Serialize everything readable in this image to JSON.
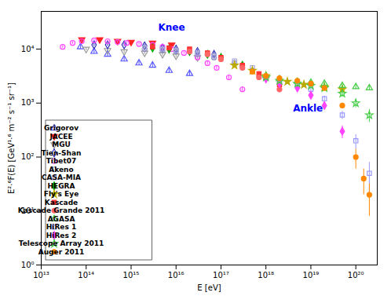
{
  "chart_data": {
    "type": "scatter",
    "xlabel": "E [eV]",
    "ylabel": "E²·⁶F(E) [GeV¹·⁶ m⁻² s⁻¹ sr⁻¹]",
    "log": true,
    "grid": false,
    "legend": "lower left",
    "xlim": [
      10000000000000.0,
      3e+20
    ],
    "ylim": [
      1,
      50000
    ],
    "xticks": [
      {
        "value": 10000000000000.0,
        "label": "10¹³"
      },
      {
        "value": 100000000000000.0,
        "label": "10¹⁴"
      },
      {
        "value": 1000000000000000.0,
        "label": "10¹⁵"
      },
      {
        "value": 1e+16,
        "label": "10¹⁶"
      },
      {
        "value": 1e+17,
        "label": "10¹⁷"
      },
      {
        "value": 1e+18,
        "label": "10¹⁸"
      },
      {
        "value": 1e+19,
        "label": "10¹⁹"
      },
      {
        "value": 1e+20,
        "label": "10²⁰"
      }
    ],
    "yticks": [
      {
        "value": 1,
        "label": "10⁰"
      },
      {
        "value": 10,
        "label": "10¹"
      },
      {
        "value": 100,
        "label": "10²"
      },
      {
        "value": 1000,
        "label": "10³"
      },
      {
        "value": 10000,
        "label": "10⁴"
      }
    ],
    "annotations": [
      {
        "text": "Knee",
        "x": 4000000000000000.0,
        "y": 22000,
        "color": "blue"
      },
      {
        "text": "Ankle",
        "x": 4e+18,
        "y": 700,
        "color": "blue"
      }
    ],
    "series": [
      {
        "name": "Grigorov",
        "color": "#5555ff",
        "marker": "triangle-up-open",
        "x": [
          75000000000000.0,
          150000000000000.0,
          300000000000000.0,
          700000000000000.0,
          1500000000000000.0,
          3000000000000000.0,
          7000000000000000.0,
          2e+16
        ],
        "values": [
          11000,
          9000,
          8000,
          6500,
          5500,
          5000,
          4000,
          3500
        ],
        "yerr": [
          1000,
          900,
          800,
          650,
          550,
          500,
          400,
          350
        ]
      },
      {
        "name": "JACEE",
        "color": "#ff2222",
        "marker": "triangle-down",
        "x": [
          80000000000000.0,
          200000000000000.0,
          500000000000000.0,
          1000000000000000.0,
          3000000000000000.0,
          8000000000000000.0
        ],
        "values": [
          15000,
          15000,
          14000,
          13500,
          13000,
          12000
        ],
        "yerr": [
          1000,
          1000,
          900,
          900,
          800,
          700
        ]
      },
      {
        "name": "MGU",
        "color": "#999999",
        "marker": "triangle-down-open",
        "x": [
          100000000000000.0,
          300000000000000.0,
          700000000000000.0,
          2000000000000000.0,
          5000000000000000.0,
          1e+16,
          3e+16
        ],
        "values": [
          10000,
          9500,
          9000,
          8500,
          8000,
          7500,
          7000
        ],
        "yerr": [
          600,
          580,
          560,
          540,
          520,
          500,
          480
        ]
      },
      {
        "name": "Tien-Shan",
        "color": "#3333bb",
        "marker": "diamond-open",
        "x": [
          150000000000000.0,
          300000000000000.0,
          700000000000000.0,
          2000000000000000.0,
          5000000000000000.0,
          1e+16,
          3e+16,
          7e+16
        ],
        "values": [
          12000,
          12000,
          12000,
          11500,
          10500,
          10000,
          9000,
          8000
        ],
        "yerr": [
          700,
          700,
          700,
          690,
          680,
          670,
          650,
          620
        ]
      },
      {
        "name": "Tibet07",
        "color": "#ff44ff",
        "marker": "circle-open",
        "x": [
          30000000000000.0,
          50000000000000.0,
          80000000000000.0,
          150000000000000.0,
          300000000000000.0,
          500000000000000.0,
          800000000000000.0,
          1500000000000000.0,
          3000000000000000.0,
          5000000000000000.0,
          8000000000000000.0,
          1.5e+16,
          3e+16,
          5e+16,
          8e+16,
          1.5e+17,
          3e+17
        ],
        "values": [
          11000,
          13000,
          14000,
          14500,
          14000,
          13500,
          13000,
          12500,
          12000,
          11000,
          10000,
          8500,
          7000,
          5500,
          4500,
          3000,
          1800
        ],
        "yerr": [
          600,
          600,
          600,
          600,
          600,
          600,
          600,
          600,
          600,
          550,
          500,
          450,
          400,
          350,
          300,
          250,
          200
        ]
      },
      {
        "name": "Akeno",
        "color": "#8888bb",
        "marker": "circle-open",
        "x": [
          2000000000000000.0,
          5000000000000000.0,
          1e+16,
          3e+16,
          7e+16,
          2e+17,
          5e+17,
          1e+18
        ],
        "values": [
          10000,
          9500,
          9000,
          8000,
          7000,
          5500,
          4000,
          3000
        ],
        "yerr": [
          500,
          490,
          480,
          460,
          440,
          400,
          350,
          300
        ]
      },
      {
        "name": "CASA-MIA",
        "color": "#aaaadd",
        "marker": "square-open",
        "x": [
          2000000000000000.0,
          5000000000000000.0,
          1e+16,
          3e+16,
          7e+16,
          2e+17,
          5e+17,
          1e+18
        ],
        "values": [
          10500,
          10000,
          9500,
          8500,
          7500,
          6000,
          4500,
          3000
        ],
        "yerr": [
          500,
          490,
          470,
          450,
          430,
          400,
          360,
          300
        ]
      },
      {
        "name": "HEGRA",
        "color": "#00aa00",
        "marker": "diamond",
        "x": [
          3000000000000000.0,
          7000000000000000.0,
          2e+16,
          5e+16,
          1e+17,
          3e+17
        ],
        "values": [
          10500,
          10000,
          9000,
          8000,
          7000,
          5000
        ],
        "yerr": [
          480,
          460,
          440,
          420,
          400,
          350
        ]
      },
      {
        "name": "Fly's Eye",
        "color": "#bbaa00",
        "marker": "star",
        "x": [
          2e+17,
          5e+17,
          1e+18,
          3e+18,
          7e+18,
          2e+19,
          5e+19
        ],
        "values": [
          5000,
          4000,
          3200,
          2500,
          2200,
          2000,
          1800
        ],
        "yerr": [
          300,
          280,
          250,
          220,
          200,
          180,
          160
        ]
      },
      {
        "name": "Kascade",
        "color": "#ff3333",
        "marker": "square",
        "x": [
          3000000000000000.0,
          7000000000000000.0,
          2e+16,
          5e+16,
          1e+17,
          3e+17,
          7e+17,
          2e+18
        ],
        "values": [
          11000,
          10500,
          10000,
          8500,
          7000,
          5000,
          3500,
          2200
        ],
        "yerr": [
          500,
          490,
          470,
          450,
          420,
          380,
          330,
          270
        ]
      },
      {
        "name": "Kascade Grande 2011",
        "color": "#ff6666",
        "marker": "circle",
        "x": [
          2e+16,
          5e+16,
          1e+17,
          3e+17,
          7e+17,
          2e+18
        ],
        "values": [
          9000,
          8000,
          6500,
          4500,
          3000,
          1800
        ],
        "yerr": [
          450,
          430,
          400,
          360,
          300,
          250
        ]
      },
      {
        "name": "AGASA",
        "color": "#44cc44",
        "marker": "triangle-up-open",
        "x": [
          1e+18,
          2e+18,
          5e+18,
          1e+19,
          2e+19,
          5e+19,
          1e+20,
          2e+20
        ],
        "values": [
          3200,
          2800,
          2500,
          2400,
          2300,
          2100,
          2000,
          1900
        ],
        "yerr": [
          250,
          230,
          220,
          210,
          200,
          200,
          200,
          200
        ]
      },
      {
        "name": "HiRes 1",
        "color": "#9999ff",
        "marker": "square-open",
        "x": [
          1e+18,
          2e+18,
          5e+18,
          1e+19,
          2e+19,
          5e+19,
          1e+20,
          2e+20
        ],
        "values": [
          3000,
          2500,
          2200,
          1800,
          1200,
          600,
          200,
          50
        ],
        "yerr": [
          250,
          230,
          200,
          180,
          150,
          100,
          60,
          30
        ]
      },
      {
        "name": "HiRes 2",
        "color": "#ff44ff",
        "marker": "diamond",
        "x": [
          1e+18,
          2e+18,
          5e+18,
          1e+19,
          2e+19,
          5e+19
        ],
        "values": [
          2800,
          2300,
          1900,
          1400,
          900,
          300
        ],
        "yerr": [
          240,
          220,
          190,
          170,
          140,
          80
        ]
      },
      {
        "name": "Telescope Array 2011",
        "color": "#44cc44",
        "marker": "star-open",
        "x": [
          1e+18,
          2e+18,
          5e+18,
          1e+19,
          2e+19,
          5e+19,
          1e+20,
          2e+20
        ],
        "values": [
          3000,
          2600,
          2300,
          2100,
          1900,
          1500,
          1000,
          600
        ],
        "yerr": [
          300,
          280,
          260,
          240,
          220,
          200,
          180,
          160
        ]
      },
      {
        "name": "Auger 2011",
        "color": "#ff8800",
        "marker": "circle",
        "x": [
          5e+17,
          1e+18,
          2e+18,
          5e+18,
          1e+19,
          2e+19,
          5e+19,
          1e+20,
          1.5e+20,
          2e+20
        ],
        "values": [
          3800,
          3200,
          2900,
          2600,
          2300,
          1900,
          900,
          100,
          40,
          20
        ],
        "yerr": [
          200,
          180,
          160,
          150,
          140,
          130,
          100,
          40,
          20,
          12
        ]
      }
    ]
  }
}
